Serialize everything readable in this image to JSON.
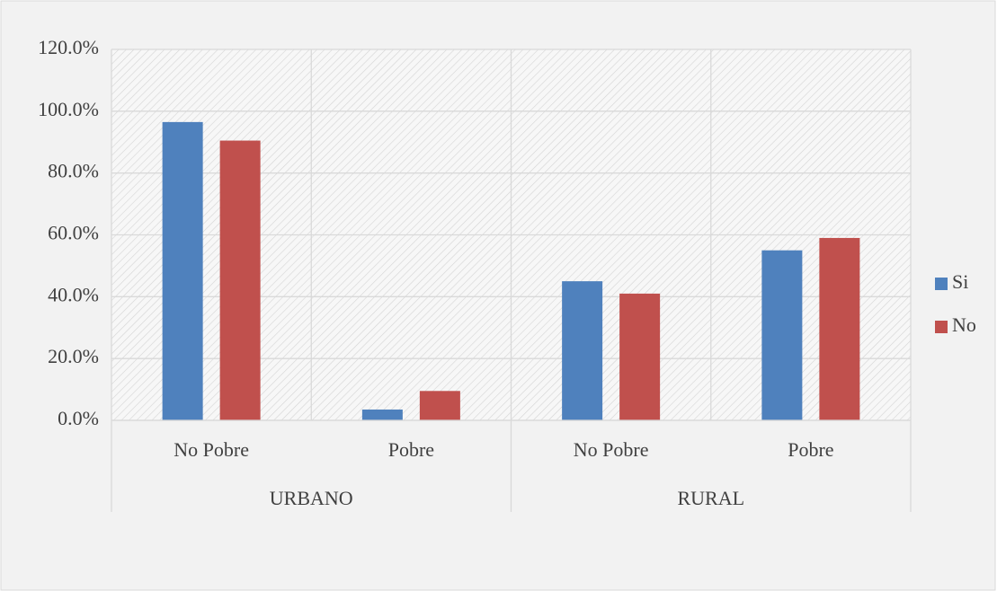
{
  "chart_data": {
    "type": "bar",
    "groups": [
      {
        "name": "URBANO",
        "categories": [
          "No Pobre",
          "Pobre"
        ]
      },
      {
        "name": "RURAL",
        "categories": [
          "No Pobre",
          "Pobre"
        ]
      }
    ],
    "series": [
      {
        "name": "Si",
        "color": "#4f81bd",
        "values": [
          96.5,
          3.5,
          45,
          55
        ]
      },
      {
        "name": "No",
        "color": "#c0504d",
        "values": [
          90.5,
          9.5,
          41,
          59
        ]
      }
    ],
    "ylim": [
      0,
      120
    ],
    "yticks": [
      {
        "value": 0,
        "label": "0.0%"
      },
      {
        "value": 20,
        "label": "20.0%"
      },
      {
        "value": 40,
        "label": "40.0%"
      },
      {
        "value": 60,
        "label": "60.0%"
      },
      {
        "value": 80,
        "label": "80.0%"
      },
      {
        "value": 100,
        "label": "100.0%"
      },
      {
        "value": 120,
        "label": "120.0%"
      }
    ],
    "grid": true,
    "legend": "right"
  }
}
